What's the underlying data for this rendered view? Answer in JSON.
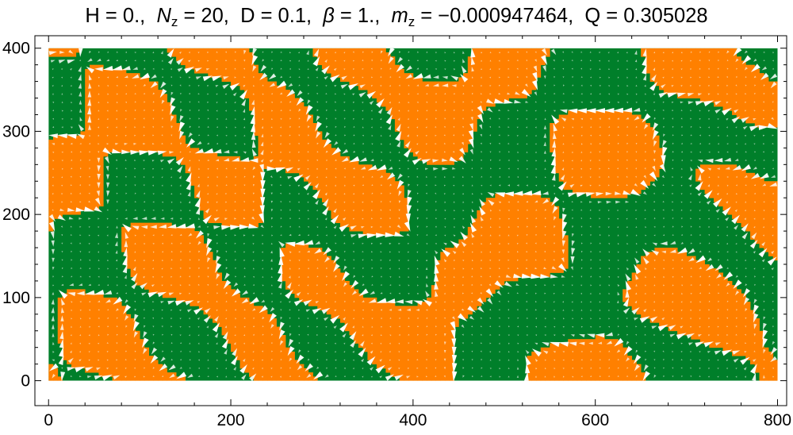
{
  "chart_data": {
    "type": "heatmap",
    "title": {
      "H_label": "H",
      "H_value": "0.",
      "Nz_symbol": "N",
      "Nz_sub": "z",
      "Nz_value": "20",
      "D_label": "D",
      "D_value": "0.1",
      "beta_symbol": "β",
      "beta_value": "1.",
      "mz_symbol": "m",
      "mz_sub": "z",
      "mz_value": "−0.000947464",
      "Q_label": "Q",
      "Q_value": "0.305028"
    },
    "xlim": [
      -15,
      810
    ],
    "ylim": [
      -30,
      415
    ],
    "domain_x": [
      0,
      800
    ],
    "domain_y": [
      0,
      400
    ],
    "x_ticks": [
      0,
      200,
      400,
      600,
      800
    ],
    "x_tick_labels": [
      "0",
      "200",
      "400",
      "600",
      "800"
    ],
    "y_ticks": [
      0,
      100,
      200,
      300,
      400
    ],
    "y_tick_labels": [
      "0",
      "100",
      "200",
      "300",
      "400"
    ],
    "x_minor_step": 40,
    "y_minor_step": 20,
    "grid": false,
    "colors": {
      "positive": "#ff8000",
      "negative": "#007f2a",
      "vectors": "#ffffff",
      "axes": "#000000"
    },
    "vector_field": true
  }
}
